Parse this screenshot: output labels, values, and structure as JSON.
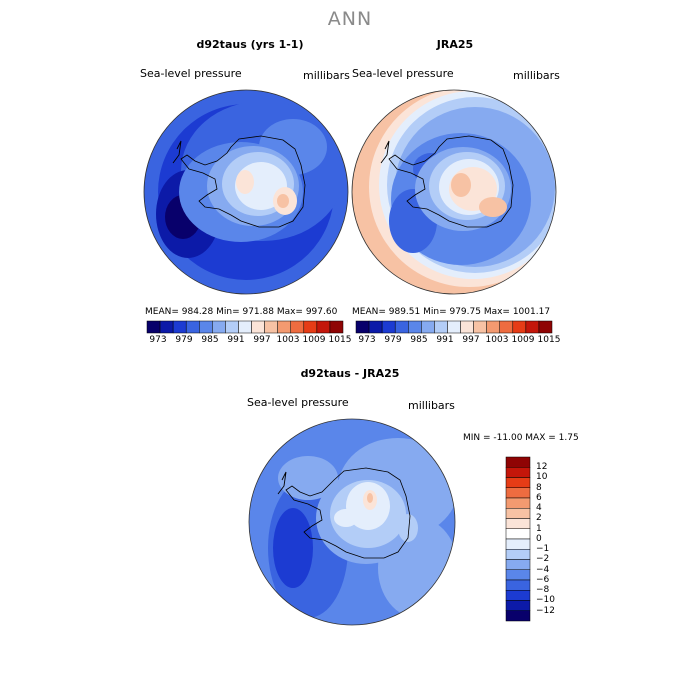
{
  "title": "ANN",
  "panel1": {
    "case": "d92taus (yrs 1-1)",
    "variable": "Sea-level pressure",
    "units": "millibars",
    "stats": "MEAN=  984.28    Min=  971.88    Max=  997.60"
  },
  "panel2": {
    "case": "JRA25",
    "variable": "Sea-level pressure",
    "units": "millibars",
    "stats": "MEAN=  989.51    Min=  979.75    Max=  1001.17"
  },
  "panel3": {
    "case": "d92taus - JRA25",
    "variable": "Sea-level pressure",
    "units": "millibars",
    "stats": "MIN = -11.00  MAX =    1.75"
  },
  "colorbar_top": {
    "labels": [
      "973",
      "979",
      "985",
      "991",
      "997",
      "1003",
      "1009",
      "1015"
    ],
    "colors": [
      "#08006b",
      "#0c1aa8",
      "#1c3bd2",
      "#3a64e0",
      "#5a86ea",
      "#86aaf0",
      "#b3cdf7",
      "#e4eefc",
      "#fbe4d8",
      "#f7c2a4",
      "#f39a70",
      "#ee6c40",
      "#e63c16",
      "#c4160a",
      "#8f0404"
    ]
  },
  "colorbar_diff": {
    "labels": [
      "12",
      "10",
      "8",
      "6",
      "4",
      "2",
      "1",
      "0",
      "−1",
      "−2",
      "−4",
      "−6",
      "−8",
      "−10",
      "−12"
    ],
    "colors": [
      "#8f0404",
      "#c4160a",
      "#e63c16",
      "#ee6c40",
      "#f39a70",
      "#f7c2a4",
      "#fbe4d8",
      "#ffffff",
      "#e4eefc",
      "#b3cdf7",
      "#86aaf0",
      "#5a86ea",
      "#3a64e0",
      "#1c3bd2",
      "#0c1aa8",
      "#08006b"
    ]
  }
}
